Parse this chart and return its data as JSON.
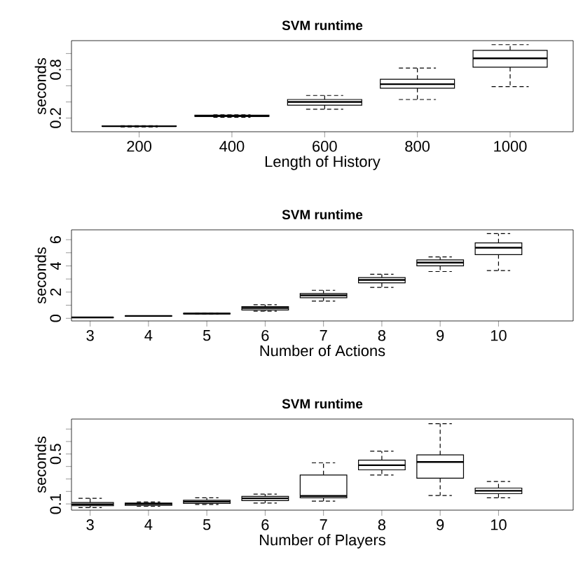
{
  "chart_data": [
    {
      "type": "box",
      "title": "SVM runtime",
      "xlabel": "Length of History",
      "ylabel": "seconds",
      "categories": [
        "200",
        "400",
        "600",
        "800",
        "1000"
      ],
      "boxes": [
        {
          "low": 0.09,
          "q1": 0.095,
          "median": 0.098,
          "q3": 0.102,
          "high": 0.105
        },
        {
          "low": 0.21,
          "q1": 0.22,
          "median": 0.225,
          "q3": 0.235,
          "high": 0.24
        },
        {
          "low": 0.31,
          "q1": 0.36,
          "median": 0.4,
          "q3": 0.43,
          "high": 0.48
        },
        {
          "low": 0.43,
          "q1": 0.57,
          "median": 0.62,
          "q3": 0.68,
          "high": 0.82
        },
        {
          "low": 0.59,
          "q1": 0.83,
          "median": 0.94,
          "q3": 1.04,
          "high": 1.11
        }
      ],
      "ylim": [
        0.03,
        1.16
      ],
      "yticks": [
        0.2,
        {
          "value": 0.4,
          "label": null
        },
        {
          "value": 0.6,
          "label": null
        },
        0.8,
        {
          "value": 1.0,
          "label": null
        }
      ]
    },
    {
      "type": "box",
      "title": "SVM runtime",
      "xlabel": "Number of Actions",
      "ylabel": "seconds",
      "categories": [
        "3",
        "4",
        "5",
        "6",
        "7",
        "8",
        "9",
        "10"
      ],
      "boxes": [
        {
          "low": 0.05,
          "q1": 0.06,
          "median": 0.07,
          "q3": 0.08,
          "high": 0.09
        },
        {
          "low": 0.15,
          "q1": 0.16,
          "median": 0.18,
          "q3": 0.19,
          "high": 0.2
        },
        {
          "low": 0.32,
          "q1": 0.34,
          "median": 0.36,
          "q3": 0.38,
          "high": 0.4
        },
        {
          "low": 0.54,
          "q1": 0.64,
          "median": 0.79,
          "q3": 0.89,
          "high": 1.04
        },
        {
          "low": 1.32,
          "q1": 1.57,
          "median": 1.75,
          "q3": 1.89,
          "high": 2.14
        },
        {
          "low": 2.36,
          "q1": 2.71,
          "median": 2.93,
          "q3": 3.11,
          "high": 3.36
        },
        {
          "low": 3.57,
          "q1": 4.0,
          "median": 4.25,
          "q3": 4.46,
          "high": 4.68
        },
        {
          "low": 3.64,
          "q1": 4.86,
          "median": 5.39,
          "q3": 5.75,
          "high": 6.46
        }
      ],
      "ylim": [
        -0.2,
        6.75
      ],
      "yticks": [
        0,
        {
          "value": 1,
          "label": null
        },
        2,
        {
          "value": 3,
          "label": null
        },
        4,
        {
          "value": 5,
          "label": null
        },
        6
      ]
    },
    {
      "type": "box",
      "title": "SVM runtime",
      "xlabel": "Number of Players",
      "ylabel": "seconds",
      "categories": [
        "3",
        "4",
        "5",
        "6",
        "7",
        "8",
        "9",
        "10"
      ],
      "boxes": [
        {
          "low": 0.07,
          "q1": 0.085,
          "median": 0.096,
          "q3": 0.111,
          "high": 0.145
        },
        {
          "low": 0.081,
          "q1": 0.089,
          "median": 0.1,
          "q3": 0.107,
          "high": 0.115
        },
        {
          "low": 0.096,
          "q1": 0.104,
          "median": 0.119,
          "q3": 0.13,
          "high": 0.149
        },
        {
          "low": 0.107,
          "q1": 0.126,
          "median": 0.145,
          "q3": 0.16,
          "high": 0.179
        },
        {
          "low": 0.122,
          "q1": 0.149,
          "median": 0.164,
          "q3": 0.332,
          "high": 0.429
        },
        {
          "low": 0.332,
          "q1": 0.373,
          "median": 0.41,
          "q3": 0.451,
          "high": 0.522
        },
        {
          "low": 0.167,
          "q1": 0.306,
          "median": 0.436,
          "q3": 0.493,
          "high": 0.743
        },
        {
          "low": 0.149,
          "q1": 0.182,
          "median": 0.205,
          "q3": 0.227,
          "high": 0.279
        }
      ],
      "ylim": [
        0.05,
        0.78
      ],
      "yticks": [
        0.1,
        {
          "value": 0.2,
          "label": null
        },
        {
          "value": 0.3,
          "label": null
        },
        {
          "value": 0.4,
          "label": null
        },
        0.5,
        {
          "value": 0.6,
          "label": null
        },
        {
          "value": 0.7,
          "label": null
        }
      ]
    }
  ]
}
